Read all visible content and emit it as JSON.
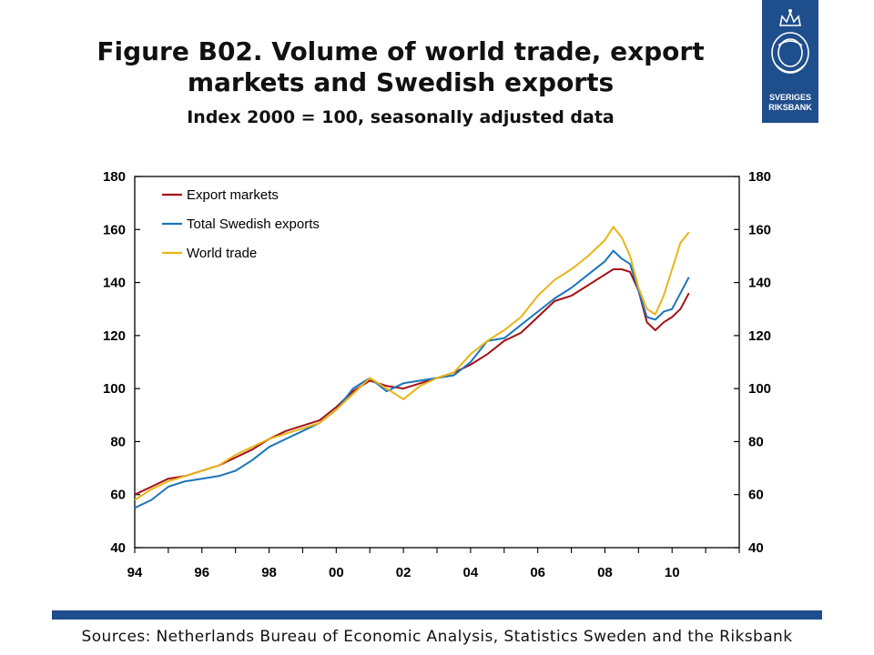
{
  "header": {
    "title": "Figure B02. Volume of world trade, export markets and Swedish exports",
    "subtitle": "Index 2000 = 100, seasonally adjusted data"
  },
  "logo": {
    "text_line1": "SVERIGES",
    "text_line2": "RIKSBANK",
    "color": "#1f4e8c"
  },
  "footer": {
    "sources": "Sources: Netherlands Bureau of Economic Analysis, Statistics Sweden and the Riksbank",
    "rule_color": "#1f4e8c"
  },
  "chart_data": {
    "type": "line",
    "title": "",
    "xlabel": "",
    "ylabel": "",
    "xlim": [
      1994,
      2012
    ],
    "ylim": [
      40,
      180
    ],
    "y_ticks": [
      40,
      60,
      80,
      100,
      120,
      140,
      160,
      180
    ],
    "y_tick_labels": [
      "40",
      "60",
      "80",
      "100",
      "120",
      "140",
      "160",
      "180"
    ],
    "x_ticks": [
      1994,
      1996,
      1998,
      2000,
      2002,
      2004,
      2006,
      2008,
      2010
    ],
    "x_tick_labels": [
      "94",
      "96",
      "98",
      "00",
      "02",
      "04",
      "06",
      "08",
      "10"
    ],
    "right_axis": true,
    "grid": false,
    "legend_position": "top-left",
    "series": [
      {
        "name": "Export markets",
        "color": "#a50f15",
        "x": [
          1994.0,
          1994.5,
          1995.0,
          1995.5,
          1996.0,
          1996.5,
          1997.0,
          1997.5,
          1998.0,
          1998.5,
          1999.0,
          1999.5,
          2000.0,
          2000.5,
          2001.0,
          2001.5,
          2002.0,
          2002.5,
          2003.0,
          2003.5,
          2004.0,
          2004.5,
          2005.0,
          2005.5,
          2006.0,
          2006.5,
          2007.0,
          2007.5,
          2008.0,
          2008.25,
          2008.5,
          2008.75,
          2009.0,
          2009.25,
          2009.5,
          2009.75,
          2010.0,
          2010.25,
          2010.5
        ],
        "values": [
          60,
          63,
          66,
          67,
          69,
          71,
          74,
          77,
          81,
          84,
          86,
          88,
          93,
          99,
          103,
          101,
          100,
          102,
          104,
          106,
          109,
          113,
          118,
          121,
          127,
          133,
          135,
          139,
          143,
          145,
          145,
          144,
          137,
          125,
          122,
          125,
          127,
          130,
          136
        ]
      },
      {
        "name": "Total Swedish exports",
        "color": "#1b75bb",
        "x": [
          1994.0,
          1994.5,
          1995.0,
          1995.5,
          1996.0,
          1996.5,
          1997.0,
          1997.5,
          1998.0,
          1998.5,
          1999.0,
          1999.5,
          2000.0,
          2000.5,
          2001.0,
          2001.5,
          2002.0,
          2002.5,
          2003.0,
          2003.5,
          2004.0,
          2004.5,
          2005.0,
          2005.5,
          2006.0,
          2006.5,
          2007.0,
          2007.5,
          2008.0,
          2008.25,
          2008.5,
          2008.75,
          2009.0,
          2009.25,
          2009.5,
          2009.75,
          2010.0,
          2010.25,
          2010.5
        ],
        "values": [
          55,
          58,
          63,
          65,
          66,
          67,
          69,
          73,
          78,
          81,
          84,
          87,
          92,
          100,
          104,
          99,
          102,
          103,
          104,
          105,
          110,
          118,
          119,
          124,
          129,
          134,
          138,
          143,
          148,
          152,
          149,
          147,
          137,
          127,
          126,
          129,
          130,
          136,
          142
        ]
      },
      {
        "name": "World trade",
        "color": "#e8b417",
        "x": [
          1994.0,
          1994.5,
          1995.0,
          1995.5,
          1996.0,
          1996.5,
          1997.0,
          1997.5,
          1998.0,
          1998.5,
          1999.0,
          1999.5,
          2000.0,
          2000.5,
          2001.0,
          2001.5,
          2002.0,
          2002.5,
          2003.0,
          2003.5,
          2004.0,
          2004.5,
          2005.0,
          2005.5,
          2006.0,
          2006.5,
          2007.0,
          2007.5,
          2008.0,
          2008.25,
          2008.5,
          2008.75,
          2009.0,
          2009.25,
          2009.5,
          2009.75,
          2010.0,
          2010.25,
          2010.5
        ],
        "values": [
          58,
          62,
          65,
          67,
          69,
          71,
          75,
          78,
          81,
          83,
          85,
          87,
          92,
          98,
          104,
          100,
          96,
          101,
          104,
          106,
          113,
          118,
          122,
          127,
          135,
          141,
          145,
          150,
          156,
          161,
          157,
          150,
          138,
          130,
          128,
          135,
          145,
          155,
          159
        ]
      }
    ]
  }
}
